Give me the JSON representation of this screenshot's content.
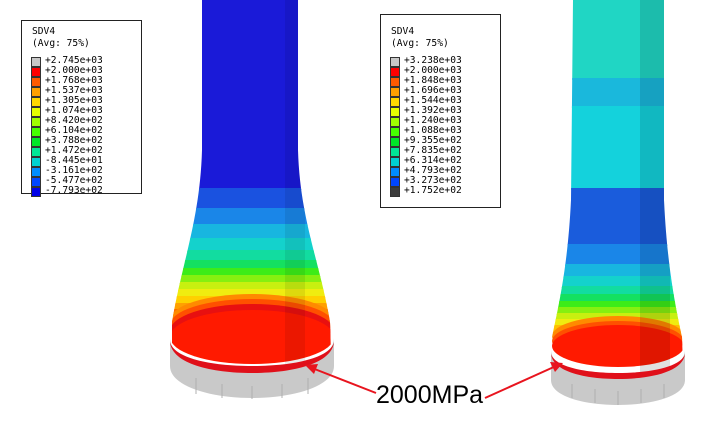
{
  "legend_left": {
    "variable": "SDV4",
    "averaging": "(Avg: 75%)",
    "entries": [
      {
        "label": "+2.745e+03",
        "color": "#c8c8c8"
      },
      {
        "label": "+2.000e+03",
        "color": "#ff0000"
      },
      {
        "label": "+1.768e+03",
        "color": "#ff5a00"
      },
      {
        "label": "+1.537e+03",
        "color": "#ffa000"
      },
      {
        "label": "+1.305e+03",
        "color": "#ffd800"
      },
      {
        "label": "+1.074e+03",
        "color": "#e6ff00"
      },
      {
        "label": "+8.420e+02",
        "color": "#a0ff00"
      },
      {
        "label": "+6.104e+02",
        "color": "#46ff00"
      },
      {
        "label": "+3.788e+02",
        "color": "#00e628"
      },
      {
        "label": "+1.472e+02",
        "color": "#00e696"
      },
      {
        "label": "-8.445e+01",
        "color": "#00d2d2"
      },
      {
        "label": "-3.161e+02",
        "color": "#008cff"
      },
      {
        "label": "-5.477e+02",
        "color": "#0046ff"
      },
      {
        "label": "-7.793e+02",
        "color": "#0000e6"
      }
    ]
  },
  "legend_right": {
    "variable": "SDV4",
    "averaging": "(Avg: 75%)",
    "entries": [
      {
        "label": "+3.238e+03",
        "color": "#c8c8c8"
      },
      {
        "label": "+2.000e+03",
        "color": "#ff0000"
      },
      {
        "label": "+1.848e+03",
        "color": "#ff5a00"
      },
      {
        "label": "+1.696e+03",
        "color": "#ffa000"
      },
      {
        "label": "+1.544e+03",
        "color": "#ffd800"
      },
      {
        "label": "+1.392e+03",
        "color": "#e6ff00"
      },
      {
        "label": "+1.240e+03",
        "color": "#a0ff00"
      },
      {
        "label": "+1.088e+03",
        "color": "#46ff00"
      },
      {
        "label": "+9.355e+02",
        "color": "#00e628"
      },
      {
        "label": "+7.835e+02",
        "color": "#00e696"
      },
      {
        "label": "+6.314e+02",
        "color": "#00d2d2"
      },
      {
        "label": "+4.793e+02",
        "color": "#008cff"
      },
      {
        "label": "+3.273e+02",
        "color": "#0046ff"
      },
      {
        "label": "+1.752e+02",
        "color": "#3c3c3c"
      }
    ]
  },
  "annotation": {
    "text": "2000MPa",
    "arrow_color": "#e8141e"
  }
}
